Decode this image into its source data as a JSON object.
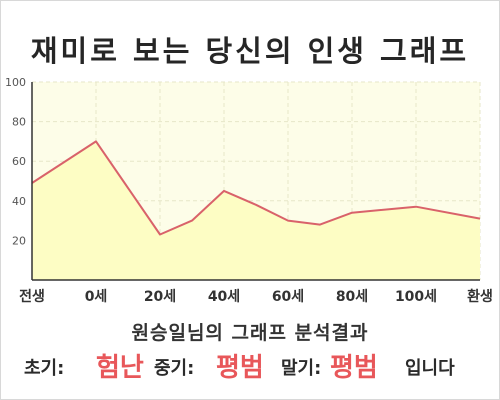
{
  "title": "재미로 보는 당신의 인생 그래프",
  "subtitle": "원승일님의 그래프 분석결과",
  "result": {
    "early_label": "초기:",
    "early_value": "험난",
    "mid_label": "중기:",
    "mid_value": "평범",
    "late_label": "말기:",
    "late_value": "평범",
    "suffix": "입니다"
  },
  "colors": {
    "line": "#d9626a",
    "fill": "#fdfdc4",
    "plot_bg": "#fdfde8",
    "grid": "#e6e6c8",
    "accent": "#e8575a"
  },
  "chart_data": {
    "type": "area",
    "x_tick_labels": [
      "전생",
      "0세",
      "20세",
      "40세",
      "60세",
      "80세",
      "100세",
      "환생"
    ],
    "y_ticks": [
      20,
      40,
      60,
      80,
      100
    ],
    "ylim": [
      0,
      100
    ],
    "grid": true,
    "points": [
      {
        "tick": 0,
        "y": 49
      },
      {
        "tick": 1,
        "y": 70
      },
      {
        "tick": 2,
        "y": 23
      },
      {
        "tick": 2.5,
        "y": 30
      },
      {
        "tick": 3,
        "y": 45
      },
      {
        "tick": 3.5,
        "y": 38
      },
      {
        "tick": 4,
        "y": 30
      },
      {
        "tick": 4.5,
        "y": 28
      },
      {
        "tick": 5,
        "y": 34
      },
      {
        "tick": 6,
        "y": 37
      },
      {
        "tick": 7,
        "y": 31
      }
    ]
  }
}
